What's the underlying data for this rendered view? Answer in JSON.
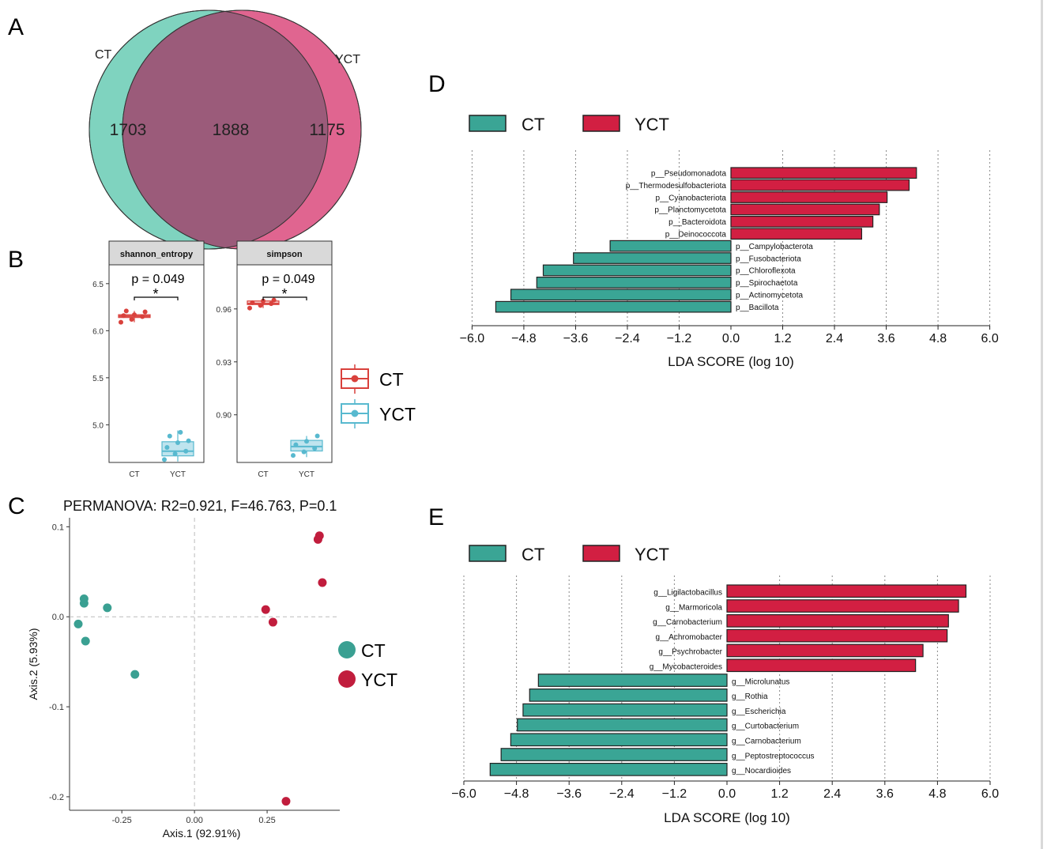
{
  "colors": {
    "ct_venn": "#7fd3bf",
    "yct_venn": "#e06590",
    "overlap": "#9b5b7a",
    "ct_box": "#d9413c",
    "yct_box": "#58b9cf",
    "ct_pcoa": "#3aa092",
    "yct_pcoa": "#c11d3d",
    "ct_bar": "#3aa595",
    "yct_bar": "#d21f42"
  },
  "panel_labels": {
    "a": "A",
    "b": "B",
    "c": "C",
    "d": "D",
    "e": "E"
  },
  "chart_data": [
    {
      "panel": "A",
      "type": "venn",
      "sets": [
        {
          "name": "CT",
          "unique": "1703"
        },
        {
          "name": "YCT",
          "unique": "1175"
        }
      ],
      "intersection": "1888"
    },
    {
      "panel": "B",
      "type": "box",
      "facets": [
        {
          "strip": "shannon_entropy",
          "ylim": [
            4.6,
            6.7
          ],
          "yticks": [
            5.0,
            5.5,
            6.0,
            6.5
          ],
          "ytick_labels": [
            "5.0",
            "5.5",
            "6.0",
            "6.5"
          ],
          "categories": [
            "CT",
            "YCT"
          ],
          "groups": [
            {
              "name": "CT",
              "q1": 6.14,
              "median": 6.155,
              "q3": 6.17,
              "whisker_low": 6.09,
              "whisker_high": 6.21,
              "points": [
                6.09,
                6.12,
                6.15,
                6.16,
                6.17,
                6.2,
                6.21
              ]
            },
            {
              "name": "YCT",
              "q1": 4.67,
              "median": 4.72,
              "q3": 4.82,
              "whisker_low": 4.61,
              "whisker_high": 4.94,
              "points": [
                4.63,
                4.69,
                4.72,
                4.76,
                4.81,
                4.83,
                4.88,
                4.92
              ]
            }
          ],
          "annotation": {
            "p_text": "p = 0.049",
            "sig": "*"
          }
        },
        {
          "strip": "simpson",
          "ylim": [
            0.873,
            0.985
          ],
          "yticks": [
            0.9,
            0.93,
            0.96
          ],
          "ytick_labels": [
            "0.90",
            "0.93",
            "0.96"
          ],
          "categories": [
            "CT",
            "YCT"
          ],
          "groups": [
            {
              "name": "CT",
              "q1": 0.9625,
              "median": 0.963,
              "q3": 0.9645,
              "whisker_low": 0.9605,
              "whisker_high": 0.9655,
              "points": [
                0.9605,
                0.962,
                0.963,
                0.9635,
                0.9645,
                0.965
              ]
            },
            {
              "name": "YCT",
              "q1": 0.8795,
              "median": 0.882,
              "q3": 0.8855,
              "whisker_low": 0.876,
              "whisker_high": 0.888,
              "points": [
                0.877,
                0.879,
                0.881,
                0.883,
                0.885,
                0.888
              ]
            }
          ],
          "annotation": {
            "p_text": "p = 0.049",
            "sig": "*"
          }
        }
      ],
      "legend": [
        "CT",
        "YCT"
      ]
    },
    {
      "panel": "C",
      "type": "scatter",
      "title": "PERMANOVA: R2=0.921, F=46.763, P=0.1",
      "xlabel": "Axis.1 (92.91%)",
      "ylabel": "Axis.2 (5.93%)",
      "xlim": [
        -0.43,
        0.5
      ],
      "ylim": [
        -0.215,
        0.11
      ],
      "xticks": [
        -0.25,
        0.0,
        0.25
      ],
      "xtick_labels": [
        "-0.25",
        "0.00",
        "0.25"
      ],
      "yticks": [
        -0.2,
        -0.1,
        0.0,
        0.1
      ],
      "ytick_labels": [
        "-0.2",
        "-0.1",
        "0.0",
        "0.1"
      ],
      "series": [
        {
          "name": "CT",
          "points": [
            [
              -0.38,
              0.02
            ],
            [
              -0.38,
              0.015
            ],
            [
              -0.3,
              0.01
            ],
            [
              -0.4,
              -0.008
            ],
            [
              -0.375,
              -0.027
            ],
            [
              -0.205,
              -0.064
            ]
          ]
        },
        {
          "name": "YCT",
          "points": [
            [
              0.43,
              0.09
            ],
            [
              0.425,
              0.086
            ],
            [
              0.44,
              0.038
            ],
            [
              0.245,
              0.008
            ],
            [
              0.27,
              -0.006
            ],
            [
              0.315,
              -0.205
            ]
          ]
        }
      ],
      "legend": [
        "CT",
        "YCT"
      ]
    },
    {
      "panel": "D",
      "type": "bar",
      "orientation": "horizontal",
      "xlabel": "LDA SCORE (log 10)",
      "xlim": [
        -6.0,
        6.0
      ],
      "xticks": [
        -6.0,
        -4.8,
        -3.6,
        -2.4,
        -1.2,
        0.0,
        1.2,
        2.4,
        3.6,
        4.8,
        6.0
      ],
      "xtick_labels": [
        "−6.0",
        "−4.8",
        "−3.6",
        "−2.4",
        "−1.2",
        "0.0",
        "1.2",
        "2.4",
        "3.6",
        "4.8",
        "6.0"
      ],
      "legend": [
        "CT",
        "YCT"
      ],
      "categories": [
        "p__Pseudomonadota",
        "p__Thermodesulfobacteriota",
        "p__Cyanobacteriota",
        "p__Planctomycetota",
        "p__Bacteroidota",
        "p__Deinococcota",
        "p__Campylobacterota",
        "p__Fusobacteriota",
        "p__Chloroflexota",
        "p__Spirochaetota",
        "p__Actinomycetota",
        "p__Bacillota"
      ],
      "values": [
        4.3,
        4.13,
        3.62,
        3.44,
        3.29,
        3.03,
        -2.8,
        -3.65,
        -4.35,
        -4.5,
        -5.1,
        -5.45
      ],
      "groups": [
        "YCT",
        "YCT",
        "YCT",
        "YCT",
        "YCT",
        "YCT",
        "CT",
        "CT",
        "CT",
        "CT",
        "CT",
        "CT"
      ]
    },
    {
      "panel": "E",
      "type": "bar",
      "orientation": "horizontal",
      "xlabel": "LDA SCORE (log 10)",
      "xlim": [
        -6.0,
        6.0
      ],
      "xticks": [
        -6.0,
        -4.8,
        -3.6,
        -2.4,
        -1.2,
        0.0,
        1.2,
        2.4,
        3.6,
        4.8,
        6.0
      ],
      "xtick_labels": [
        "−6.0",
        "−4.8",
        "−3.6",
        "−2.4",
        "−1.2",
        "0.0",
        "1.2",
        "2.4",
        "3.6",
        "4.8",
        "6.0"
      ],
      "legend": [
        "CT",
        "YCT"
      ],
      "categories": [
        "g__Ligilactobacillus",
        "g__Marmoricola",
        "g__Carnobacterium",
        "g__Achromobacter",
        "g__Psychrobacter",
        "g__Mycobacteroides",
        "g__Microlunatus",
        "g__Rothia",
        "g__Escherichia",
        "g__Curtobacterium",
        "g__Carnobacterium",
        "g__Peptostreptococcus",
        "g__Nocardioides"
      ],
      "values": [
        5.45,
        5.28,
        5.05,
        5.02,
        4.47,
        4.3,
        -4.3,
        -4.5,
        -4.65,
        -4.78,
        -4.93,
        -5.15,
        -5.4
      ],
      "groups": [
        "YCT",
        "YCT",
        "YCT",
        "YCT",
        "YCT",
        "YCT",
        "CT",
        "CT",
        "CT",
        "CT",
        "CT",
        "CT",
        "CT"
      ]
    }
  ]
}
